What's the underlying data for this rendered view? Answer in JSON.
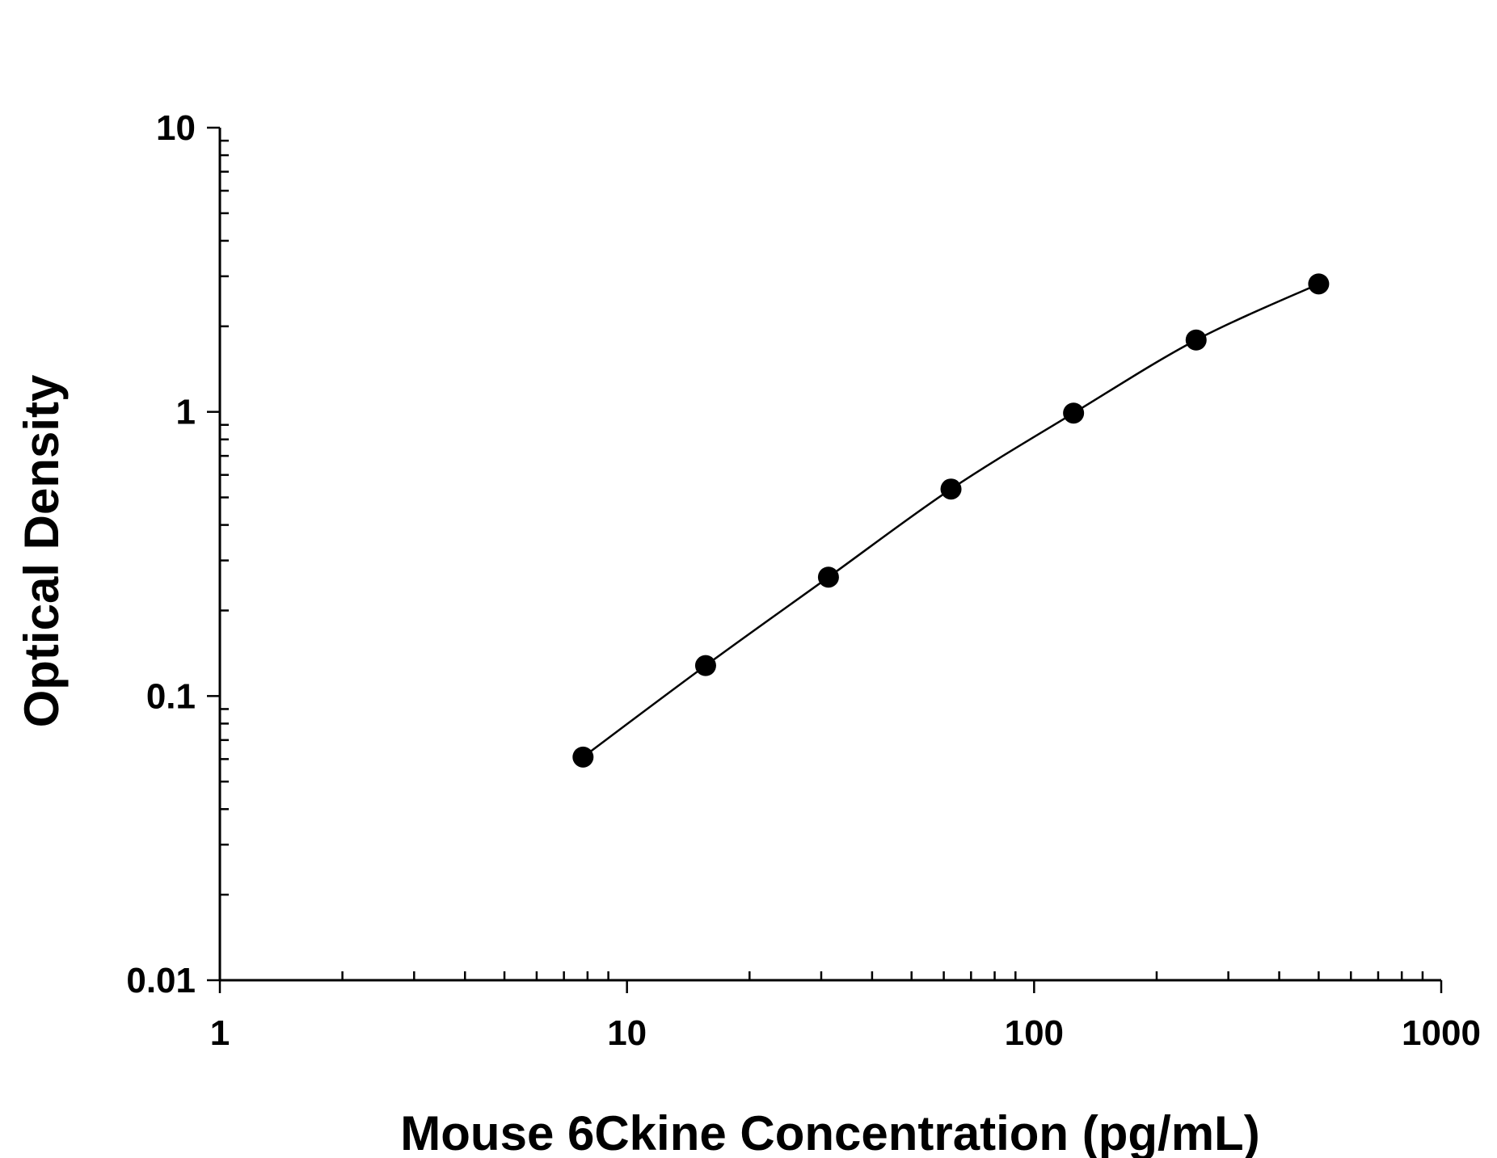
{
  "chart_data": {
    "type": "scatter",
    "title": "",
    "xlabel": "Mouse 6Ckine Concentration (pg/mL)",
    "ylabel": "Optical Density",
    "xscale": "log",
    "yscale": "log",
    "xlim": [
      1,
      1000
    ],
    "ylim": [
      0.01,
      10
    ],
    "x_ticks": [
      "1",
      "10",
      "100",
      "1000"
    ],
    "y_ticks": [
      "0.01",
      "0.1",
      "1",
      "10"
    ],
    "grid": false,
    "legend": "none",
    "fit_line": true,
    "series": [
      {
        "x": [
          7.8,
          15.6,
          31.25,
          62.5,
          125,
          250,
          500
        ],
        "y": [
          0.061,
          0.128,
          0.262,
          0.535,
          0.99,
          1.79,
          2.82
        ]
      }
    ]
  }
}
